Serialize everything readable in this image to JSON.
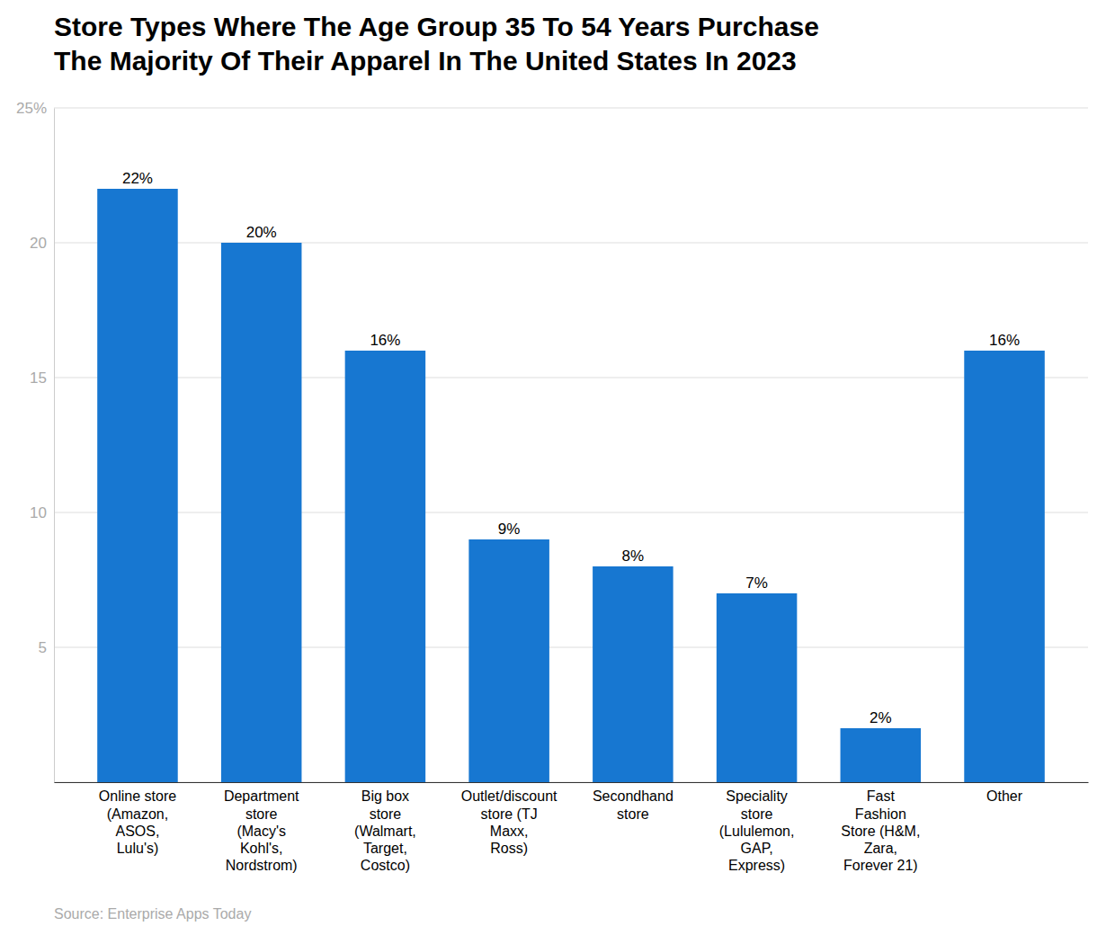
{
  "chart_data": {
    "type": "bar",
    "title": "Store Types Where The Age Group 35 To 54 Years Purchase\nThe Majority Of Their Apparel In The United States In 2023",
    "categories": [
      "Online store\n(Amazon,\nASOS,\nLulu's)",
      "Department\nstore\n(Macy's\nKohl's,\nNordstrom)",
      "Big box\nstore\n(Walmart,\nTarget,\nCostco)",
      "Outlet/discount\nstore (TJ\nMaxx,\nRoss)",
      "Secondhand\nstore",
      "Speciality\nstore\n(Lululemon,\nGAP,\nExpress)",
      "Fast\nFashion\nStore (H&M,\nZara,\nForever 21)",
      "Other"
    ],
    "values": [
      22,
      20,
      16,
      9,
      8,
      7,
      2,
      16
    ],
    "value_labels": [
      "22%",
      "20%",
      "16%",
      "9%",
      "8%",
      "7%",
      "2%",
      "16%"
    ],
    "data_labels": true,
    "color": "#1777d1",
    "ylim": [
      0,
      25
    ],
    "yticks": [
      {
        "value": 0,
        "label": null
      },
      5,
      10,
      15,
      20,
      {
        "value": 25,
        "label": "25%"
      }
    ],
    "grid": true,
    "source": "Source: Enterprise Apps Today"
  }
}
